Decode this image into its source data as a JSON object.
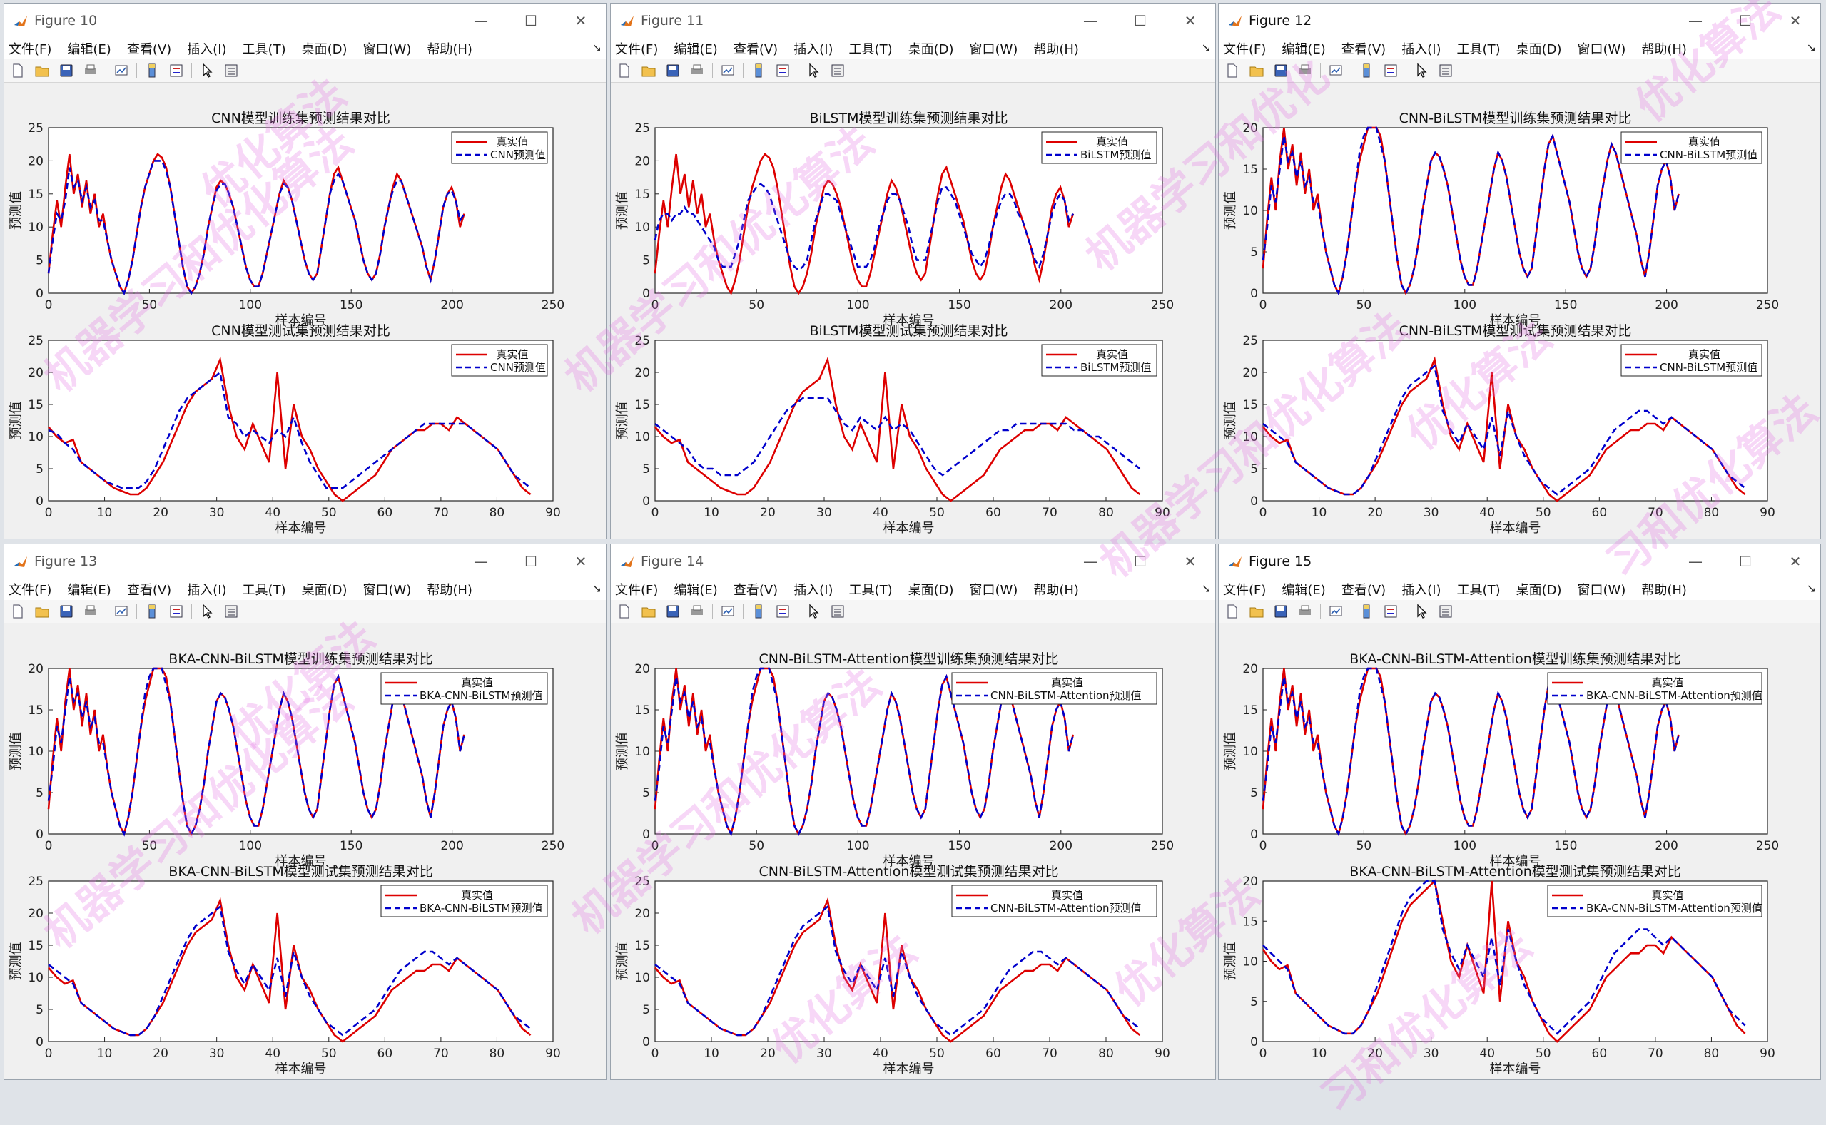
{
  "menu": [
    "文件(F)",
    "编辑(E)",
    "查看(V)",
    "插入(I)",
    "工具(T)",
    "桌面(D)",
    "窗口(W)",
    "帮助(H)"
  ],
  "common": {
    "xlabel": "样本编号",
    "ylabel": "预测值",
    "legend_true": "真实值"
  },
  "colors": {
    "true": "#dd0000",
    "pred": "#0000cc",
    "watermark": "#e070e0"
  },
  "watermark": {
    "text1": "机器学习和优化算法",
    "text2": "优化算法",
    "text3": "机器学习和优化",
    "text4": "习和优化算法"
  },
  "windows": [
    {
      "title": "Figure 10",
      "model": "CNN",
      "train_title": "CNN模型训练集预测结果对比",
      "test_title": "CNN模型测试集预测结果对比",
      "legend_pred": "CNN预测值",
      "train_ylim": [
        0,
        25
      ],
      "test_ylim": [
        0,
        25
      ]
    },
    {
      "title": "Figure 11",
      "model": "BiLSTM",
      "train_title": "BiLSTM模型训练集预测结果对比",
      "test_title": "BiLSTM模型测试集预测结果对比",
      "legend_pred": "BiLSTM预测值",
      "train_ylim": [
        0,
        25
      ],
      "test_ylim": [
        0,
        25
      ]
    },
    {
      "title": "Figure 12",
      "model": "CNN-BiLSTM",
      "train_title": "CNN-BiLSTM模型训练集预测结果对比",
      "test_title": "CNN-BiLSTM模型测试集预测结果对比",
      "legend_pred": "CNN-BiLSTM预测值",
      "train_ylim": [
        0,
        20
      ],
      "test_ylim": [
        0,
        25
      ]
    },
    {
      "title": "Figure 13",
      "model": "BKA-CNN-BiLSTM",
      "train_title": "BKA-CNN-BiLSTM模型训练集预测结果对比",
      "test_title": "BKA-CNN-BiLSTM模型测试集预测结果对比",
      "legend_pred": "BKA-CNN-BiLSTM预测值",
      "train_ylim": [
        0,
        20
      ],
      "test_ylim": [
        0,
        25
      ]
    },
    {
      "title": "Figure 14",
      "model": "CNN-BiLSTM-Attention",
      "train_title": "CNN-BiLSTM-Attention模型训练集预测结果对比",
      "test_title": "CNN-BiLSTM-Attention模型测试集预测结果对比",
      "legend_pred": "CNN-BiLSTM-Attention预测值",
      "train_ylim": [
        0,
        20
      ],
      "test_ylim": [
        0,
        25
      ]
    },
    {
      "title": "Figure 15",
      "model": "BKA-CNN-BiLSTM-Attention",
      "train_title": "BKA-CNN-BiLSTM-Attention模型训练集预测结果对比",
      "test_title": "BKA-CNN-BiLSTM-Attention模型测试集预测结果对比",
      "legend_pred": "BKA-CNN-BiLSTM-Attention预测值",
      "train_ylim": [
        0,
        20
      ],
      "test_ylim": [
        0,
        20
      ]
    }
  ],
  "chart_data": [
    {
      "type": "line",
      "x_axis": {
        "range": [
          0,
          250
        ],
        "ticks": [
          0,
          50,
          100,
          150,
          200,
          250
        ]
      },
      "series": [
        {
          "name": "真实值",
          "kind": "train"
        }
      ]
    },
    {
      "type": "line",
      "x_axis": {
        "range": [
          0,
          90
        ],
        "ticks": [
          0,
          10,
          20,
          30,
          40,
          50,
          60,
          70,
          80,
          90
        ]
      },
      "series": [
        {
          "name": "真实值",
          "kind": "test"
        }
      ]
    }
  ],
  "train_true": [
    3,
    9,
    14,
    10,
    16,
    21,
    15,
    18,
    13,
    17,
    12,
    15,
    10,
    12,
    8,
    5,
    3,
    1,
    0,
    2,
    5,
    9,
    13,
    16,
    18,
    20,
    21,
    20.5,
    19,
    16,
    12,
    8,
    4,
    1,
    0,
    1,
    3,
    6,
    10,
    13,
    16,
    17,
    16.5,
    15,
    13,
    10,
    7,
    4,
    2,
    1,
    1,
    3,
    6,
    9,
    12,
    15,
    17,
    16,
    14,
    11,
    8,
    5,
    3,
    2,
    3,
    7,
    11,
    15,
    18,
    19,
    17,
    15,
    13,
    11,
    8,
    5,
    3,
    2,
    3,
    6,
    10,
    13,
    16,
    18,
    17,
    15,
    13,
    11,
    9,
    7,
    4,
    2,
    5,
    9,
    13,
    15,
    16,
    14,
    10,
    12
  ],
  "train_pred_cnn": [
    3,
    8,
    12,
    11,
    14,
    19,
    16,
    17,
    14,
    16,
    13,
    14,
    11,
    11,
    8,
    5,
    3,
    1,
    0,
    2,
    5,
    9,
    13,
    16,
    18,
    20,
    20,
    20,
    18.5,
    16,
    12,
    8,
    4,
    1,
    0,
    1,
    3,
    6,
    10,
    13,
    15.5,
    16.5,
    16.5,
    15,
    13,
    10,
    7,
    4,
    2,
    1,
    1,
    3,
    6,
    9,
    12,
    15,
    16.5,
    16,
    14,
    11,
    8,
    5,
    3,
    2,
    3,
    7,
    11,
    15,
    17,
    18,
    17,
    15,
    13,
    11,
    8,
    5,
    3,
    2,
    3,
    6,
    10,
    13,
    15.5,
    17,
    17,
    15,
    13,
    11,
    9,
    7,
    4,
    2,
    5,
    9,
    13,
    15,
    15.5,
    14,
    11,
    12
  ],
  "train_pred_bilstm": [
    8,
    11,
    12,
    12,
    11,
    12,
    12,
    13,
    12,
    12,
    11,
    10,
    9,
    8,
    7,
    5,
    4,
    4,
    4,
    6,
    8,
    11,
    14,
    15,
    16,
    16.5,
    16,
    15,
    13,
    11,
    9,
    7,
    5,
    4,
    3.5,
    4,
    5,
    8,
    11,
    13,
    15,
    15,
    14.5,
    14,
    12,
    10,
    8,
    6,
    4,
    4,
    4,
    5,
    7,
    10,
    12,
    14,
    15,
    15,
    14,
    12,
    10,
    7,
    5,
    5,
    5,
    8,
    11,
    14,
    16,
    16,
    15,
    14,
    12,
    10,
    8,
    6,
    5,
    4,
    5,
    7,
    10,
    12,
    14,
    15,
    15,
    14,
    12,
    11,
    9,
    7,
    5,
    4,
    6,
    9,
    12,
    14,
    15,
    14,
    11,
    12
  ],
  "train_pred_hybrid": [
    4,
    8,
    13,
    11,
    15,
    19,
    16,
    17,
    14,
    16,
    13,
    14,
    11,
    11,
    8,
    5,
    3,
    1,
    0,
    2,
    5,
    9,
    13,
    17,
    19,
    20,
    20,
    20,
    18,
    16,
    12,
    8,
    4,
    1,
    0,
    1,
    3,
    6,
    10,
    13,
    16,
    17,
    16.5,
    15,
    13,
    10,
    7,
    4,
    2,
    1,
    1,
    3,
    6,
    9,
    12,
    15,
    17,
    16,
    14,
    11,
    8,
    5,
    3,
    2,
    3,
    7,
    11,
    15,
    18,
    19,
    17,
    15,
    13,
    11,
    8,
    5,
    3,
    2,
    3,
    6,
    10,
    13,
    16,
    18,
    17,
    15,
    13,
    11,
    9,
    7,
    4,
    2,
    5,
    9,
    13,
    15,
    16,
    14,
    10,
    12
  ],
  "test_true": [
    11.5,
    10,
    9,
    9.5,
    6,
    5,
    4,
    3,
    2,
    1.5,
    1,
    1,
    2,
    4,
    6,
    9,
    12,
    15,
    17,
    18,
    19,
    22,
    15,
    10,
    8,
    12,
    9,
    6,
    20,
    5,
    15,
    10,
    8,
    5,
    3,
    1,
    0,
    1,
    2,
    3,
    4,
    6,
    8,
    9,
    10,
    11,
    11,
    12,
    12,
    11,
    13,
    12,
    11,
    10,
    9,
    8,
    6,
    4,
    2,
    1
  ],
  "test_pred_cnn": [
    11,
    10.5,
    9,
    8,
    6,
    5,
    4,
    3,
    2.5,
    2,
    2,
    2,
    3,
    5,
    8,
    11,
    14,
    16,
    17,
    18,
    19,
    20,
    13,
    12,
    10,
    11,
    10,
    9,
    11,
    10,
    13,
    9,
    6,
    4,
    2,
    2,
    2,
    3,
    4,
    5,
    6,
    7,
    8,
    9,
    10,
    11,
    12,
    12,
    12,
    12,
    12,
    12,
    11,
    10,
    9,
    8,
    6,
    4,
    3,
    2
  ],
  "test_pred_bilstm": [
    12,
    11,
    10,
    9,
    8,
    6,
    5,
    5,
    4,
    4,
    4,
    5,
    6,
    8,
    10,
    12,
    14,
    15,
    16,
    16,
    16,
    16,
    14,
    12,
    11,
    13,
    12,
    11,
    13,
    11,
    12,
    11,
    9,
    7,
    5,
    4,
    5,
    6,
    7,
    8,
    9,
    10,
    11,
    11,
    12,
    12,
    12,
    12,
    12,
    12,
    12,
    11,
    11,
    10,
    10,
    9,
    8,
    7,
    6,
    5
  ],
  "test_pred_hybrid": [
    12,
    11,
    10,
    9,
    6,
    5,
    4,
    3,
    2,
    1.5,
    1,
    1,
    2,
    4,
    7,
    10,
    13,
    16,
    18,
    19,
    20,
    21,
    14,
    11,
    9,
    12,
    10,
    8,
    13,
    7,
    14,
    10,
    7,
    5,
    3,
    2,
    1,
    2,
    3,
    4,
    5,
    7,
    9,
    11,
    12,
    13,
    14,
    14,
    13,
    12,
    13,
    12,
    11,
    10,
    9,
    8,
    6,
    4,
    3,
    2
  ]
}
